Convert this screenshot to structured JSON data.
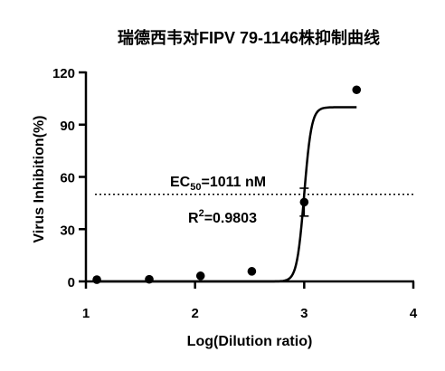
{
  "chart_data": {
    "type": "scatter",
    "title": "瑞德西韦对FIPV 79-1146株抑制曲线",
    "xlabel": "Log(Dilution ratio)",
    "ylabel": "Virus Inhibition(%)",
    "xlim": [
      1,
      4
    ],
    "ylim": [
      0,
      120
    ],
    "xticks": [
      1,
      2,
      3,
      4
    ],
    "yticks": [
      0,
      30,
      60,
      90,
      120
    ],
    "xtick_labels": [
      "1",
      "2",
      "3",
      "4"
    ],
    "ytick_labels": [
      "0",
      "30",
      "60",
      "90",
      "120"
    ],
    "grid": false,
    "legend": "none",
    "series": [
      {
        "points": [
          {
            "x": 1.1,
            "y": 1.0
          },
          {
            "x": 1.58,
            "y": 1.2
          },
          {
            "x": 2.05,
            "y": 3.2
          },
          {
            "x": 2.52,
            "y": 5.8
          },
          {
            "x": 3.0,
            "y": 45.5
          },
          {
            "x": 3.48,
            "y": 110.0
          }
        ],
        "error_bars": [
          {
            "x": 3.0,
            "low": 37.5,
            "high": 53.5
          }
        ]
      }
    ],
    "fit_curve": {
      "model": "sigmoid",
      "bottom": 0,
      "top": 100,
      "logEC50": 3.0,
      "hill": 13,
      "x_range": [
        1.1,
        3.48
      ]
    },
    "reference_line": {
      "y": 50,
      "style": "dotted"
    },
    "annotations": {
      "ec50_prefix": "EC",
      "ec50_sub": "50",
      "ec50_value": "=1011 nM",
      "r2_prefix": "R",
      "r2_sup": "2",
      "r2_value": "=0.9803"
    },
    "colors": {
      "marks": "#000000",
      "background": "#ffffff"
    }
  }
}
